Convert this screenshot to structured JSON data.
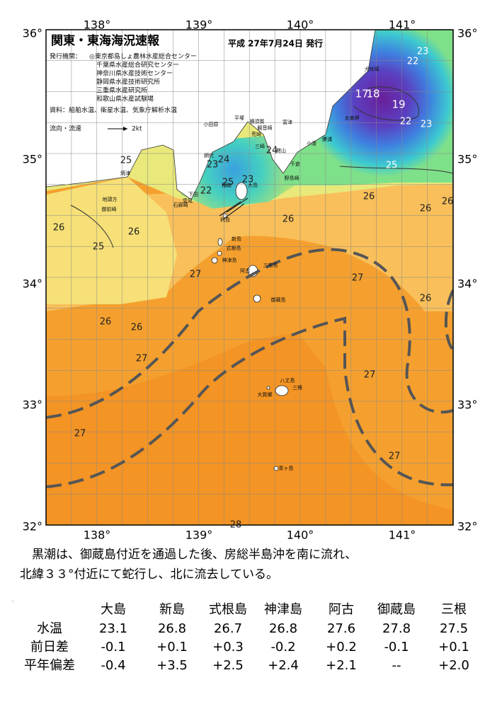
{
  "header": {
    "title": "関東・東海海況速報",
    "date": "平成 27年7月24日 発行",
    "publisher_label": "発行機関：",
    "publishers": [
      "◎東京都島しょ農林水産総合センター",
      "千葉県水産総合研究センター",
      "神奈川県水産技術センター",
      "静岡県水産技術研究所",
      "三重県水産研究所",
      "和歌山県水産試験場"
    ],
    "source": "資料：船舶水温、衛星水温、気象庁解析水温",
    "legend_current": "流向・流速",
    "legend_speed": "2kt"
  },
  "axes": {
    "lon": [
      "138°",
      "139°",
      "140°",
      "141°"
    ],
    "lat": [
      "36°",
      "35°",
      "34°",
      "33°",
      "32°"
    ]
  },
  "isotherm_labels": [
    "23",
    "22",
    "17",
    "18",
    "19",
    "22",
    "23",
    "25",
    "25",
    "23",
    "24",
    "24",
    "22",
    "25",
    "23",
    "26",
    "26",
    "26",
    "26",
    "26",
    "26",
    "25",
    "27",
    "27",
    "26",
    "26",
    "26",
    "27",
    "27",
    "27",
    "27",
    "28"
  ],
  "places": [
    "犬吠埼",
    "太東岬",
    "勝浦",
    "小湊",
    "千倉",
    "野島崎",
    "館山",
    "富津",
    "横須賀",
    "観音崎",
    "荒崎",
    "三崎",
    "平塚",
    "小田原",
    "網代",
    "稲取",
    "下田",
    "石廊崎",
    "雲見",
    "焼津",
    "地頭方",
    "御前崎",
    "大島",
    "利島",
    "新島",
    "式根島",
    "神津島",
    "三宅島",
    "阿古",
    "御蔵島",
    "八丈島",
    "大賀郷",
    "三根",
    "青ヶ島"
  ],
  "summary": [
    "黒潮は、御蔵島付近を通過した後、房総半島沖を南に流れ、",
    "北緯３３°付近にて蛇行し、北に流去している。"
  ],
  "table": {
    "columns": [
      "大島",
      "新島",
      "式根島",
      "神津島",
      "阿古",
      "御蔵島",
      "三根"
    ],
    "rows": [
      {
        "label": "水温",
        "cells": [
          "23.1",
          "26.8",
          "26.7",
          "26.8",
          "27.6",
          "27.8",
          "27.5"
        ]
      },
      {
        "label": "前日差",
        "cells": [
          "-0.1",
          "+0.1",
          "+0.3",
          "-0.2",
          "+0.2",
          "-0.1",
          "+0.1"
        ]
      },
      {
        "label": "平年偏差",
        "cells": [
          "-0.4",
          "+3.5",
          "+2.5",
          "+2.4",
          "+2.1",
          "--",
          "+2.0"
        ]
      }
    ]
  }
}
